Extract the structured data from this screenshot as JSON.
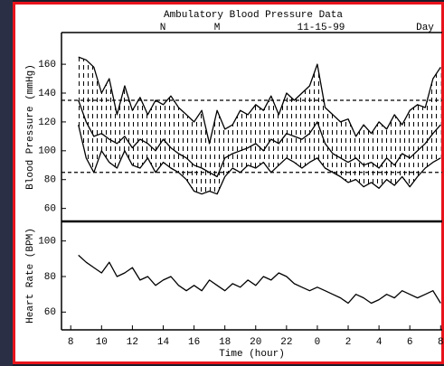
{
  "chart_data": [
    {
      "type": "band",
      "title": "Ambulatory Blood Pressure Data",
      "header_labels": [
        "N",
        "M",
        "11-15-99",
        "Day"
      ],
      "y_label": "Blood Pressure (mmHg)",
      "x": [
        8.5,
        9,
        9.5,
        10,
        10.5,
        11,
        11.5,
        12,
        12.5,
        13,
        13.5,
        14,
        14.5,
        15,
        15.5,
        16,
        16.5,
        17,
        17.5,
        18,
        18.5,
        19,
        19.5,
        20,
        20.5,
        21,
        21.5,
        22,
        22.5,
        23,
        23.5,
        24,
        24.5,
        25,
        25.5,
        26,
        26.5,
        27,
        27.5,
        28,
        28.5,
        29,
        29.5,
        30,
        30.5,
        31,
        31.5,
        32
      ],
      "series": [
        {
          "color": "#000000",
          "values": [
            165,
            163,
            158,
            140,
            150,
            125,
            145,
            128,
            137,
            125,
            135,
            132,
            138,
            130,
            125,
            120,
            128,
            105,
            128,
            115,
            118,
            128,
            125,
            132,
            128,
            138,
            125,
            140,
            135,
            140,
            145,
            160,
            130,
            125,
            120,
            122,
            110,
            118,
            112,
            120,
            115,
            125,
            118,
            128,
            132,
            130,
            150,
            158
          ]
        },
        {
          "color": "#000000",
          "values": [
            118,
            95,
            85,
            100,
            92,
            88,
            100,
            90,
            88,
            95,
            85,
            92,
            88,
            85,
            80,
            72,
            70,
            72,
            70,
            82,
            88,
            85,
            90,
            88,
            92,
            85,
            90,
            95,
            92,
            88,
            92,
            95,
            88,
            85,
            82,
            78,
            80,
            75,
            78,
            74,
            80,
            76,
            82,
            75,
            82,
            88,
            92,
            95
          ]
        },
        {
          "color": "#000000",
          "values": [
            135,
            120,
            110,
            112,
            108,
            105,
            110,
            102,
            108,
            105,
            100,
            108,
            102,
            98,
            95,
            90,
            88,
            85,
            82,
            95,
            98,
            100,
            102,
            105,
            100,
            108,
            105,
            112,
            110,
            108,
            112,
            120,
            105,
            98,
            95,
            92,
            95,
            90,
            92,
            88,
            95,
            90,
            98,
            95,
            100,
            105,
            112,
            118
          ]
        }
      ],
      "reference_lines": [
        135,
        85
      ],
      "xlim": [
        7.4,
        32.1
      ],
      "ylim": [
        51,
        182
      ],
      "yticks": [
        60,
        80,
        100,
        120,
        140,
        160
      ]
    },
    {
      "type": "line",
      "y_label": "Heart Rate (BPM)",
      "x_label": "Time (hour)",
      "x": [
        8.5,
        9,
        9.5,
        10,
        10.5,
        11,
        11.5,
        12,
        12.5,
        13,
        13.5,
        14,
        14.5,
        15,
        15.5,
        16,
        16.5,
        17,
        17.5,
        18,
        18.5,
        19,
        19.5,
        20,
        20.5,
        21,
        21.5,
        22,
        22.5,
        23,
        23.5,
        24,
        24.5,
        25,
        25.5,
        26,
        26.5,
        27,
        27.5,
        28,
        28.5,
        29,
        29.5,
        30,
        30.5,
        31,
        31.5,
        32
      ],
      "series": [
        {
          "color": "#000000",
          "values": [
            92,
            88,
            85,
            82,
            88,
            80,
            82,
            85,
            78,
            80,
            75,
            78,
            80,
            75,
            72,
            75,
            72,
            78,
            75,
            72,
            76,
            74,
            78,
            75,
            80,
            78,
            82,
            80,
            76,
            74,
            72,
            74,
            72,
            70,
            68,
            65,
            70,
            68,
            65,
            67,
            70,
            68,
            72,
            70,
            68,
            70,
            72,
            65
          ]
        }
      ],
      "xlim": [
        7.4,
        32.1
      ],
      "ylim": [
        50,
        111
      ],
      "yticks": [
        60,
        80,
        100
      ],
      "xticks": [
        8,
        10,
        12,
        14,
        16,
        18,
        20,
        22,
        {
          "value": 24,
          "label": "0"
        },
        {
          "value": 26,
          "label": "2"
        },
        {
          "value": 28,
          "label": "4"
        },
        {
          "value": 30,
          "label": "6"
        },
        {
          "value": 32,
          "label": "8"
        }
      ]
    }
  ]
}
